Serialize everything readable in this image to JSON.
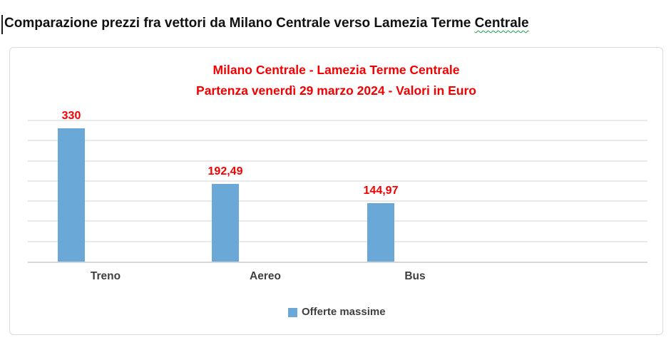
{
  "document": {
    "title_main": "Comparazione prezzi fra vettori da Milano Centrale verso Lamezia Terme ",
    "title_flagged_word": "Centrale"
  },
  "chart": {
    "title_line1": "Milano Centrale - Lamezia Terme Centrale",
    "title_line2": "Partenza venerdì 29 marzo 2024 - Valori in Euro",
    "legend_label": "Offerte massime",
    "colors": {
      "bar": "#6aa8d8",
      "title_red": "#f40000",
      "gridline": "#e9e9e9",
      "axis_line": "#d6d6d6",
      "axis_text": "#3f3f3f",
      "frame_border": "#dadada"
    }
  },
  "chart_data": {
    "type": "bar",
    "title": "Milano Centrale - Lamezia Terme Centrale\nPartenza venerdì 29 marzo 2024 - Valori in Euro",
    "categories": [
      "Treno",
      "Aereo",
      "Bus"
    ],
    "series": [
      {
        "name": "Offerte massime",
        "values": [
          330,
          192.49,
          144.97
        ]
      }
    ],
    "data_labels": [
      "330",
      "192,49",
      "144,97"
    ],
    "xlabel": "",
    "ylabel": "",
    "ylim": [
      0,
      350
    ],
    "gridline_step": 50,
    "grid": true,
    "y_axis_labels_visible": false,
    "legend_position": "bottom"
  }
}
